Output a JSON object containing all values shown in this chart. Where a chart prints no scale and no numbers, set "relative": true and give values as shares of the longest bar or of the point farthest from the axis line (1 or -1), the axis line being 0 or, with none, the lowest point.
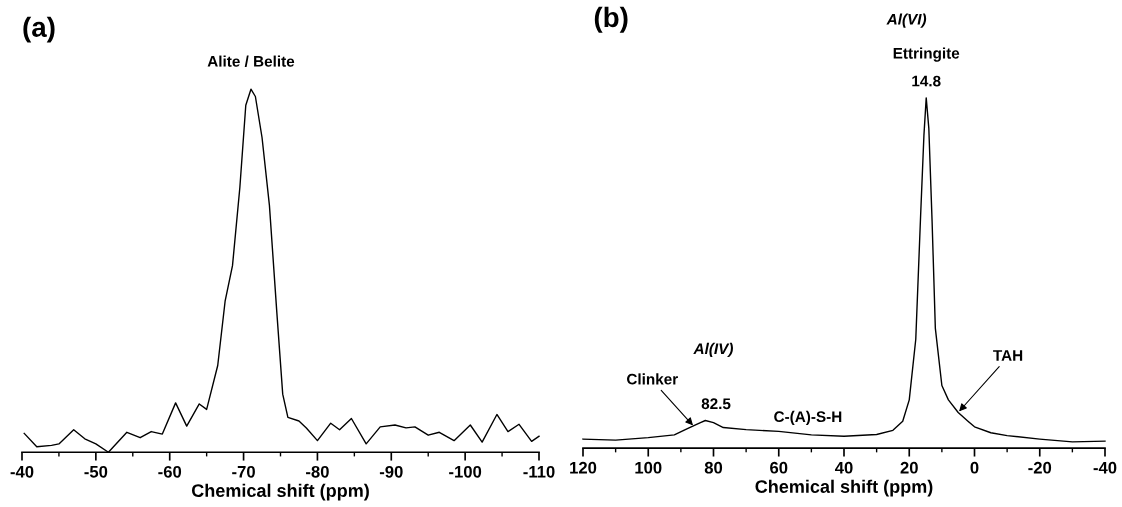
{
  "chart_data": [
    {
      "type": "line",
      "title": "(a)",
      "xlabel": "Chemical shift (ppm)",
      "relative": true,
      "xlim": [
        -40,
        -110
      ],
      "xticks": [
        -40,
        -50,
        -60,
        -70,
        -80,
        -90,
        -100,
        -110
      ],
      "tick_labels": "x",
      "grid": false,
      "legend": false,
      "x": [
        -40.3,
        -42,
        -44,
        -45,
        -47,
        -48.5,
        -50,
        -51.7,
        -54.2,
        -56,
        -57.5,
        -59,
        -60.8,
        -62.3,
        -64,
        -65,
        -66.5,
        -67.5,
        -68.5,
        -69.5,
        -70.3,
        -71,
        -71.6,
        -72.5,
        -73.5,
        -74.5,
        -75.3,
        -76,
        -77.5,
        -78.5,
        -80,
        -81.8,
        -83,
        -84.6,
        -86.6,
        -88.5,
        -90.5,
        -92,
        -93.2,
        -95,
        -96.5,
        -98.5,
        -100.7,
        -102.3,
        -104.3,
        -105.8,
        -107.3,
        -109,
        -110
      ],
      "series": [
        {
          "color": "#000000",
          "values": [
            0.052,
            0.015,
            0.019,
            0.023,
            0.062,
            0.037,
            0.023,
            0.0,
            0.055,
            0.04,
            0.057,
            0.05,
            0.136,
            0.072,
            0.133,
            0.118,
            0.239,
            0.416,
            0.514,
            0.73,
            0.956,
            1.0,
            0.98,
            0.867,
            0.68,
            0.386,
            0.16,
            0.096,
            0.086,
            0.067,
            0.032,
            0.08,
            0.062,
            0.093,
            0.023,
            0.07,
            0.075,
            0.067,
            0.07,
            0.047,
            0.055,
            0.032,
            0.075,
            0.028,
            0.104,
            0.057,
            0.077,
            0.03,
            0.044
          ]
        }
      ],
      "annotations": [
        {
          "text": "Alite / Belite",
          "x": -71,
          "y": 1.0
        }
      ]
    },
    {
      "type": "line",
      "title": "(b)",
      "xlabel": "Chemical shift (ppm)",
      "relative": true,
      "xlim": [
        120,
        -40
      ],
      "xticks": [
        120,
        100,
        80,
        60,
        40,
        20,
        0,
        -20,
        -40
      ],
      "tick_labels": "x",
      "grid": false,
      "legend": false,
      "x": [
        120,
        110,
        100,
        92,
        88,
        84,
        82.5,
        80,
        77,
        70,
        60,
        50,
        40,
        30,
        25,
        22,
        20,
        18,
        16.5,
        15.5,
        14.8,
        14,
        13,
        12,
        10,
        8,
        5,
        2,
        0,
        -5,
        -10,
        -20,
        -30,
        -40
      ],
      "series": [
        {
          "color": "#000000",
          "values": [
            0.026,
            0.023,
            0.03,
            0.038,
            0.056,
            0.073,
            0.079,
            0.073,
            0.059,
            0.053,
            0.048,
            0.038,
            0.034,
            0.039,
            0.051,
            0.077,
            0.138,
            0.311,
            0.668,
            0.893,
            1.0,
            0.913,
            0.648,
            0.342,
            0.179,
            0.138,
            0.102,
            0.077,
            0.061,
            0.044,
            0.036,
            0.026,
            0.018,
            0.02
          ]
        }
      ],
      "annotations": [
        {
          "text": "14.8",
          "x": 14.8,
          "y": 1.0
        },
        {
          "text": "Ettringite",
          "x": 14.8,
          "y": 1.0
        },
        "Al(VI)",
        {
          "text": "82.5",
          "x": 82.5,
          "y": 0.079
        },
        {
          "text": "Clinker",
          "x": 86,
          "y": 0.062
        },
        "Al(IV)",
        {
          "text": "C-(A)-S-H",
          "x": 65,
          "y": 0.05
        },
        {
          "text": "TAH",
          "x": 5,
          "y": 0.102
        }
      ]
    }
  ]
}
